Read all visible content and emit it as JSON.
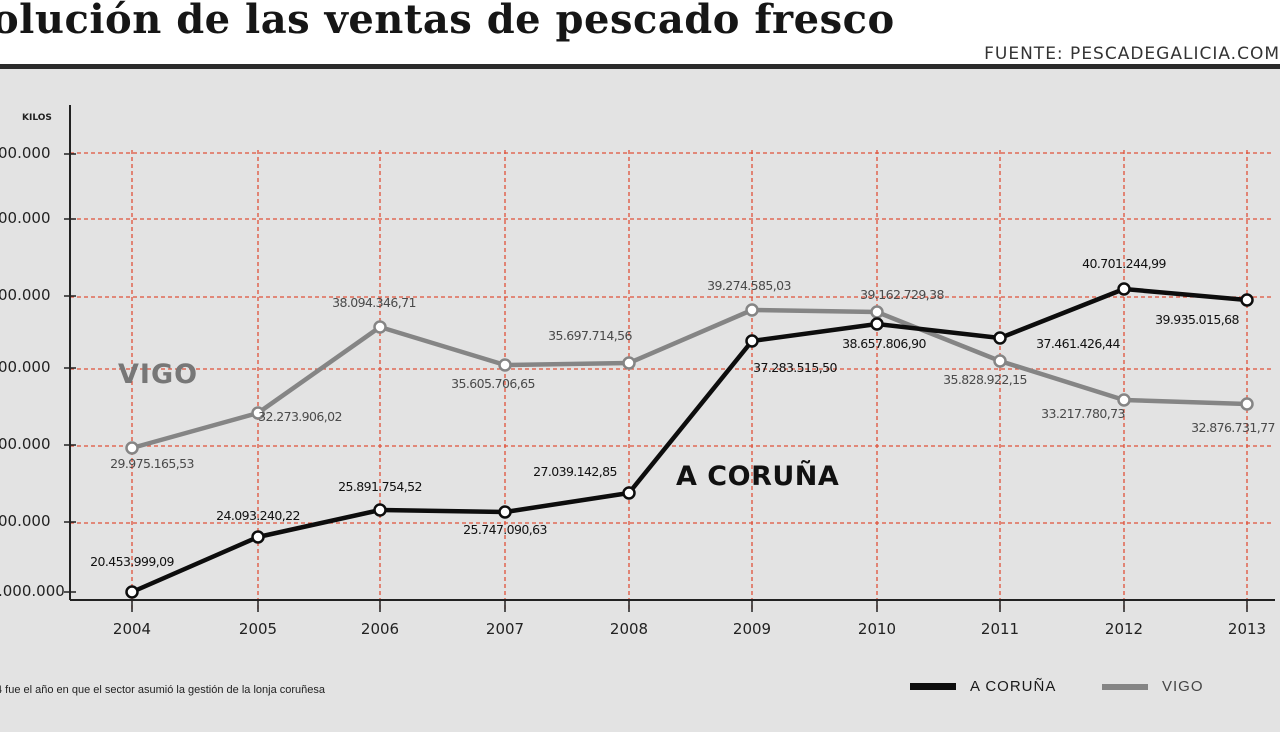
{
  "header": {
    "title": "olución de las ventas de pescado fresco",
    "source": "FUENTE: PESCADEGALICIA.COM"
  },
  "footnote": "4 fue el año en que el sector asumió la gestión de la lonja coruñesa",
  "legend": [
    {
      "label": "A CORUÑA",
      "color": "#0d0d0d"
    },
    {
      "label": "VIGO",
      "color": "#858585"
    }
  ],
  "chart_data": {
    "type": "line",
    "ylabel": "KILOS",
    "y_tick_labels": [
      ".000.000",
      "00.000",
      "00.000",
      "00.000",
      "00.000",
      "00.000",
      "00.000"
    ],
    "y_tick_values": [
      20000000,
      23000000,
      26000000,
      29000000,
      32000000,
      35000000,
      37500000
    ],
    "x": [
      "2004",
      "2005",
      "2006",
      "2007",
      "2008",
      "2009",
      "2010",
      "2011",
      "2012",
      "2013"
    ],
    "ylim": [
      20000000,
      39000000
    ],
    "grid": true,
    "legend_position": "bottom-right",
    "series": [
      {
        "name": "A CORUÑA",
        "color": "#0d0d0d",
        "values": [
          20453999.09,
          24093240.22,
          25891754.52,
          25747090.63,
          27039142.85,
          37283515.5,
          38657806.9,
          37461426.44,
          40701244.99,
          39935015.68
        ],
        "labels": [
          "20.453.999,09",
          "24.093.240,22",
          "25.891.754,52",
          "25.747.090,63",
          "27.039.142,85",
          "37.283.515,50",
          "38.657.806,90",
          "37.461.426,44",
          "40.701.244,99",
          "39.935.015,68"
        ],
        "label": "A CORUÑA"
      },
      {
        "name": "VIGO",
        "color": "#858585",
        "values": [
          29975165.53,
          32273906.02,
          38094346.71,
          35605706.65,
          35697714.56,
          39274585.03,
          39162729.38,
          35828922.15,
          33217780.73,
          32876731.77
        ],
        "labels": [
          "29.975.165,53",
          "32.273.906,02",
          "38.094.346,71",
          "35.605.706,65",
          "35.697.714,56",
          "39.274.585,03",
          "39.162.729,38",
          "35.828.922,15",
          "33.217.780,73",
          "32.876.731,77"
        ],
        "label": "VIGO"
      }
    ]
  }
}
